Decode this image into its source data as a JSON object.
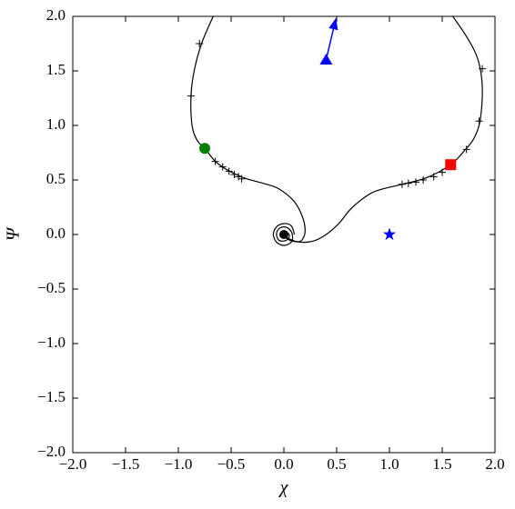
{
  "chart_data": {
    "type": "line",
    "xlabel": "χ",
    "ylabel": "Ψ",
    "xlim": [
      -2,
      2
    ],
    "ylim": [
      -2,
      2
    ],
    "xticks": [
      {
        "value": -2,
        "label": "−2.0"
      },
      {
        "value": -1.5,
        "label": "−1.5"
      },
      {
        "value": -1,
        "label": "−1.0"
      },
      {
        "value": -0.5,
        "label": "−0.5"
      },
      {
        "value": 0,
        "label": "0.0"
      },
      0.5,
      {
        "value": 1,
        "label": "1.0"
      },
      1.5,
      {
        "value": 2,
        "label": "2.0"
      }
    ],
    "yticks": [
      {
        "value": -2,
        "label": "−2.0"
      },
      {
        "value": -1.5,
        "label": "−1.5"
      },
      {
        "value": -1,
        "label": "−1.0"
      },
      {
        "value": -0.5,
        "label": "−0.5"
      },
      {
        "value": 0,
        "label": "0.0"
      },
      0.5,
      {
        "value": 1,
        "label": "1.0"
      },
      1.5,
      {
        "value": 2,
        "label": "2.0"
      }
    ],
    "series": [
      {
        "marker": "line",
        "color": "#000000",
        "x": [
          -0.67,
          -0.78,
          -0.85,
          -0.88,
          -0.87,
          -0.82,
          -0.75,
          -0.65,
          -0.55,
          -0.45,
          -0.35,
          -0.2,
          -0.05,
          0.1,
          0.18,
          0.2,
          0.16,
          0.08,
          0.02,
          0
        ],
        "y": [
          2,
          1.75,
          1.5,
          1.27,
          1.0,
          0.86,
          0.79,
          0.67,
          0.6,
          0.55,
          0.51,
          0.47,
          0.42,
          0.3,
          0.15,
          0.02,
          -0.06,
          -0.06,
          -0.03,
          0
        ]
      },
      {
        "marker": "line",
        "color": "#000000",
        "x": [
          1.6,
          1.74,
          1.84,
          1.88,
          1.86,
          1.8,
          1.72,
          1.58,
          1.35,
          1.12,
          0.85,
          0.65,
          0.52,
          0.4,
          0.28,
          0.15,
          0.05,
          0
        ],
        "y": [
          2,
          1.8,
          1.6,
          1.35,
          1.05,
          0.88,
          0.78,
          0.64,
          0.52,
          0.46,
          0.39,
          0.25,
          0.1,
          0.0,
          -0.06,
          -0.07,
          -0.04,
          0
        ]
      },
      {
        "marker": "line",
        "color": "#000000",
        "x": [
          0.1,
          0.07,
          0,
          -0.07,
          -0.1,
          -0.07,
          0,
          0.07,
          0.08,
          0.05,
          0,
          -0.05,
          -0.07,
          -0.05,
          0,
          0.04,
          0.05,
          0,
          -0.03,
          0,
          0.02
        ],
        "y": [
          0,
          0.08,
          0.1,
          0.07,
          0,
          -0.07,
          -0.1,
          -0.07,
          0,
          0.05,
          0.07,
          0.05,
          0,
          -0.05,
          -0.06,
          -0.04,
          0,
          0.03,
          0,
          -0.02,
          0
        ]
      },
      {
        "marker": "plus",
        "color": "#000000",
        "x": [
          -0.8,
          -0.88,
          -0.65,
          -0.58,
          -0.52,
          -0.47,
          -0.43,
          -0.4,
          1.88,
          1.85,
          1.73,
          1.5,
          1.42,
          1.32,
          1.25,
          1.18,
          1.12
        ],
        "y": [
          1.75,
          1.27,
          0.67,
          0.62,
          0.58,
          0.55,
          0.53,
          0.51,
          1.52,
          1.04,
          0.78,
          0.57,
          0.53,
          0.5,
          0.48,
          0.47,
          0.46
        ]
      },
      {
        "marker": "arrow",
        "color": "#0000ff",
        "x": [
          0.4,
          0.49
        ],
        "y": [
          1.6,
          1.97
        ]
      },
      {
        "marker": "circle",
        "color": "#008000",
        "x": [
          -0.75
        ],
        "y": [
          0.79
        ]
      },
      {
        "marker": "square",
        "color": "#ff0000",
        "x": [
          1.58
        ],
        "y": [
          0.64
        ]
      },
      {
        "marker": "star",
        "color": "#0000ff",
        "x": [
          1.0
        ],
        "y": [
          0.0
        ]
      },
      {
        "marker": "triangle",
        "color": "#0000ff",
        "x": [
          0.4
        ],
        "y": [
          1.6
        ]
      },
      {
        "marker": "dot",
        "color": "#000000",
        "x": [
          0
        ],
        "y": [
          0
        ]
      }
    ]
  }
}
